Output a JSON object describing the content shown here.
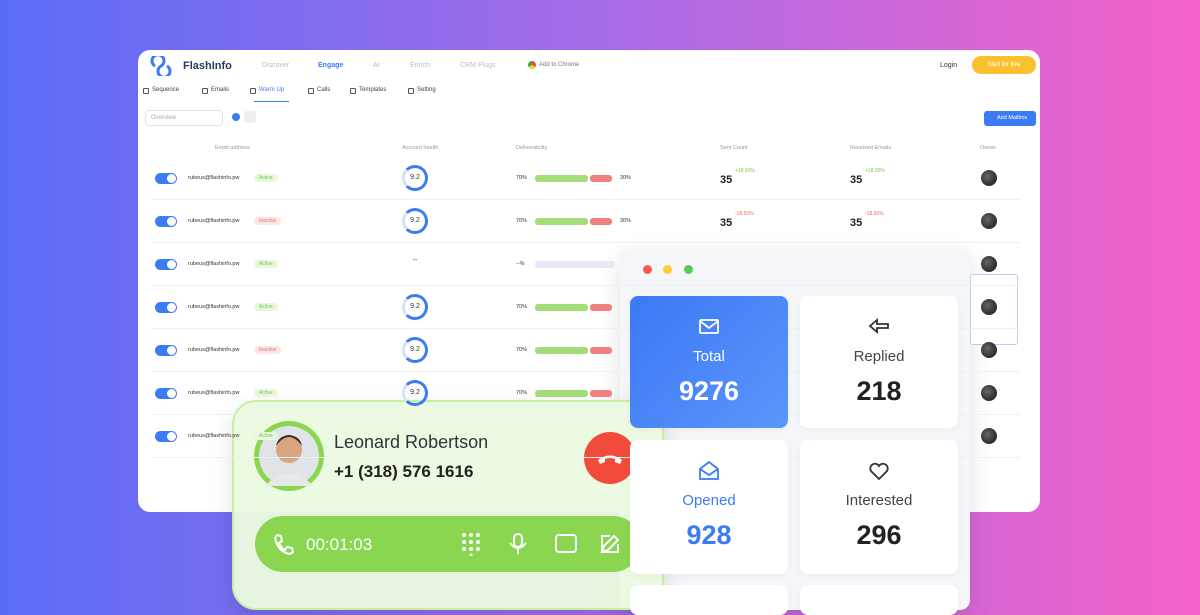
{
  "header": {
    "brand": "FlashInfo",
    "nav": [
      "Discover",
      "Engage",
      "AI",
      "Enrich",
      "CRM Plugs"
    ],
    "chrome": "Add to Chrome",
    "login": "Login",
    "cta": "Start for free"
  },
  "subnav": [
    "Sequence",
    "Emails",
    "Warm Up",
    "Calls",
    "Templates",
    "Setting"
  ],
  "toolbar": {
    "filter": "Overview",
    "add": "Add Mailbox"
  },
  "table": {
    "columns": [
      "Email address",
      "Account health",
      "Deliverability",
      "Sent Count",
      "Received Emails",
      "Owner"
    ],
    "rows": [
      {
        "email": "rubeus@flashinfo.pw",
        "status": "Active",
        "health": 9.2,
        "delivered": "70%",
        "undelivered": "30%",
        "sent": 35,
        "sent_change": "+18.50%",
        "received": 35,
        "received_change": "+18.50%"
      },
      {
        "email": "rubeus@flashinfo.pw",
        "status": "Inactive",
        "health": 9.2,
        "delivered": "70%",
        "undelivered": "30%",
        "sent": 35,
        "sent_change": "-18.50%",
        "received": 35,
        "received_change": "-18.50%"
      },
      {
        "email": "rubeus@flashinfo.pw",
        "status": "Active",
        "health": "--",
        "delivered": "--%"
      },
      {
        "email": "rubeus@flashinfo.pw",
        "status": "Active",
        "health": 9.2,
        "delivered": "70%"
      },
      {
        "email": "rubeus@flashinfo.pw",
        "status": "Inactive",
        "health": 9.2,
        "delivered": "70%"
      },
      {
        "email": "rubeus@flashinfo.pw",
        "status": "Active",
        "health": 9.2,
        "delivered": "70%"
      },
      {
        "email": "rubeus@flashinfo.pw",
        "status": "Active"
      }
    ]
  },
  "stats": [
    {
      "label": "Total",
      "value": 9276
    },
    {
      "label": "Replied",
      "value": 218
    },
    {
      "label": "Opened",
      "value": 928
    },
    {
      "label": "Interested",
      "value": 296
    }
  ],
  "call": {
    "name": "Leonard Robertson",
    "phone": "+1 (318) 576 1616",
    "timer": "00:01:03"
  }
}
